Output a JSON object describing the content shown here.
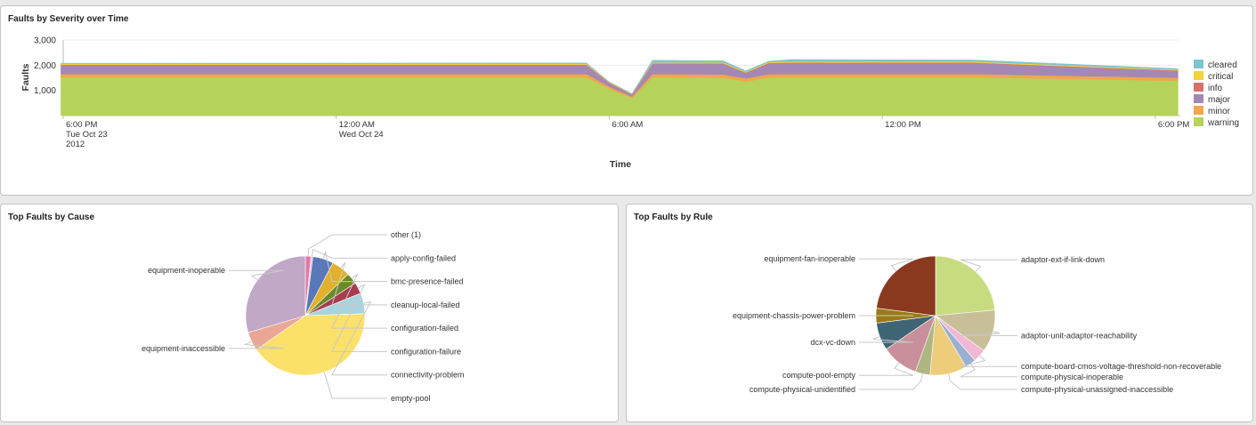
{
  "panels": {
    "severity": {
      "title": "Faults by Severity over Time"
    },
    "cause": {
      "title": "Top Faults by Cause"
    },
    "rule": {
      "title": "Top Faults by Rule"
    }
  },
  "chart_data": [
    {
      "type": "area",
      "stacked": true,
      "title": "Faults by Severity over Time",
      "xlabel": "Time",
      "ylabel": "Faults",
      "ylim": [
        0,
        3000
      ],
      "y_ticks": [
        1000,
        2000,
        3000
      ],
      "y_tick_labels": [
        "1,000",
        "2,000",
        "3,000"
      ],
      "grid": true,
      "legend_position": "right",
      "x_tick_labels": [
        {
          "x": 0,
          "lines": [
            "6:00 PM",
            "Tue Oct 23",
            "2012"
          ]
        },
        {
          "x": 6,
          "lines": [
            "12:00 AM",
            "Wed Oct 24"
          ]
        },
        {
          "x": 12,
          "lines": [
            "6:00 AM"
          ]
        },
        {
          "x": 18,
          "lines": [
            "12:00 PM"
          ]
        },
        {
          "x": 24,
          "lines": [
            "6:00 PM"
          ]
        }
      ],
      "x": [
        -0.05,
        11.5,
        12.0,
        12.5,
        12.95,
        14.5,
        15.0,
        15.5,
        16.0,
        20.0,
        24.5
      ],
      "series": [
        {
          "name": "warning",
          "color": "#b5d35b",
          "values": [
            1520,
            1520,
            1060,
            690,
            1520,
            1500,
            1350,
            1510,
            1520,
            1520,
            1380
          ]
        },
        {
          "name": "minor",
          "color": "#f1a64a",
          "values": [
            130,
            130,
            90,
            60,
            130,
            130,
            120,
            130,
            130,
            130,
            120
          ]
        },
        {
          "name": "major",
          "color": "#a488b4",
          "values": [
            350,
            350,
            140,
            80,
            400,
            420,
            220,
            420,
            430,
            430,
            270
          ]
        },
        {
          "name": "info",
          "color": "#d8706a",
          "values": [
            20,
            20,
            20,
            15,
            25,
            25,
            20,
            25,
            25,
            25,
            20
          ]
        },
        {
          "name": "critical",
          "color": "#f2d23e",
          "values": [
            40,
            40,
            20,
            15,
            40,
            40,
            30,
            40,
            40,
            40,
            30
          ]
        },
        {
          "name": "cleared",
          "color": "#7ec3cd",
          "values": [
            20,
            30,
            10,
            10,
            80,
            60,
            40,
            30,
            80,
            60,
            40
          ]
        }
      ]
    },
    {
      "type": "pie",
      "title": "Top Faults by Cause",
      "slices": [
        {
          "label": "other (1)",
          "value": 1.5,
          "color": "#e07aa8"
        },
        {
          "label": "apply-config-failed",
          "value": 0.5,
          "color": "#f3b7cf"
        },
        {
          "label": "bmc-presence-failed",
          "value": 5.5,
          "color": "#5878b8"
        },
        {
          "label": "cleanup-local-failed",
          "value": 5.0,
          "color": "#e2b02c"
        },
        {
          "label": "configuration-failed",
          "value": 3.0,
          "color": "#6c8a2c"
        },
        {
          "label": "configuration-failure",
          "value": 3.0,
          "color": "#a83c50"
        },
        {
          "label": "connectivity-problem",
          "value": 5.5,
          "color": "#a8d4df"
        },
        {
          "label": "empty-pool",
          "value": 40.0,
          "color": "#fbe06a"
        },
        {
          "label": "equipment-inaccessible",
          "value": 5.0,
          "color": "#eba795"
        },
        {
          "label": "equipment-inoperable",
          "value": 29.0,
          "color": "#c0a8c6"
        }
      ]
    },
    {
      "type": "pie",
      "title": "Top Faults by Rule",
      "slices": [
        {
          "label": "adaptor-ext-if-link-down",
          "value": 23.5,
          "color": "#c7dc80"
        },
        {
          "label": "adaptor-unit-adaptor-reachability",
          "value": 11.5,
          "color": "#c8be98"
        },
        {
          "label": "compute-board-cmos-voltage-threshold-non-recoverable",
          "value": 3.5,
          "color": "#f1b7d5"
        },
        {
          "label": "compute-physical-inoperable",
          "value": 3.0,
          "color": "#99b0d2"
        },
        {
          "label": "compute-physical-unassigned-inaccessible",
          "value": 10.0,
          "color": "#edcc7a"
        },
        {
          "label": "compute-physical-unidentified",
          "value": 4.0,
          "color": "#aeb782"
        },
        {
          "label": "compute-pool-empty",
          "value": 10.0,
          "color": "#c98f9b"
        },
        {
          "label": "dcx-vc-down",
          "value": 7.5,
          "color": "#3f6575"
        },
        {
          "label": "equipment-chassis-power-problem",
          "value": 4.0,
          "color": "#9a7b14"
        },
        {
          "label": "equipment-fan-inoperable",
          "value": 23.0,
          "color": "#893a1e"
        }
      ]
    }
  ]
}
